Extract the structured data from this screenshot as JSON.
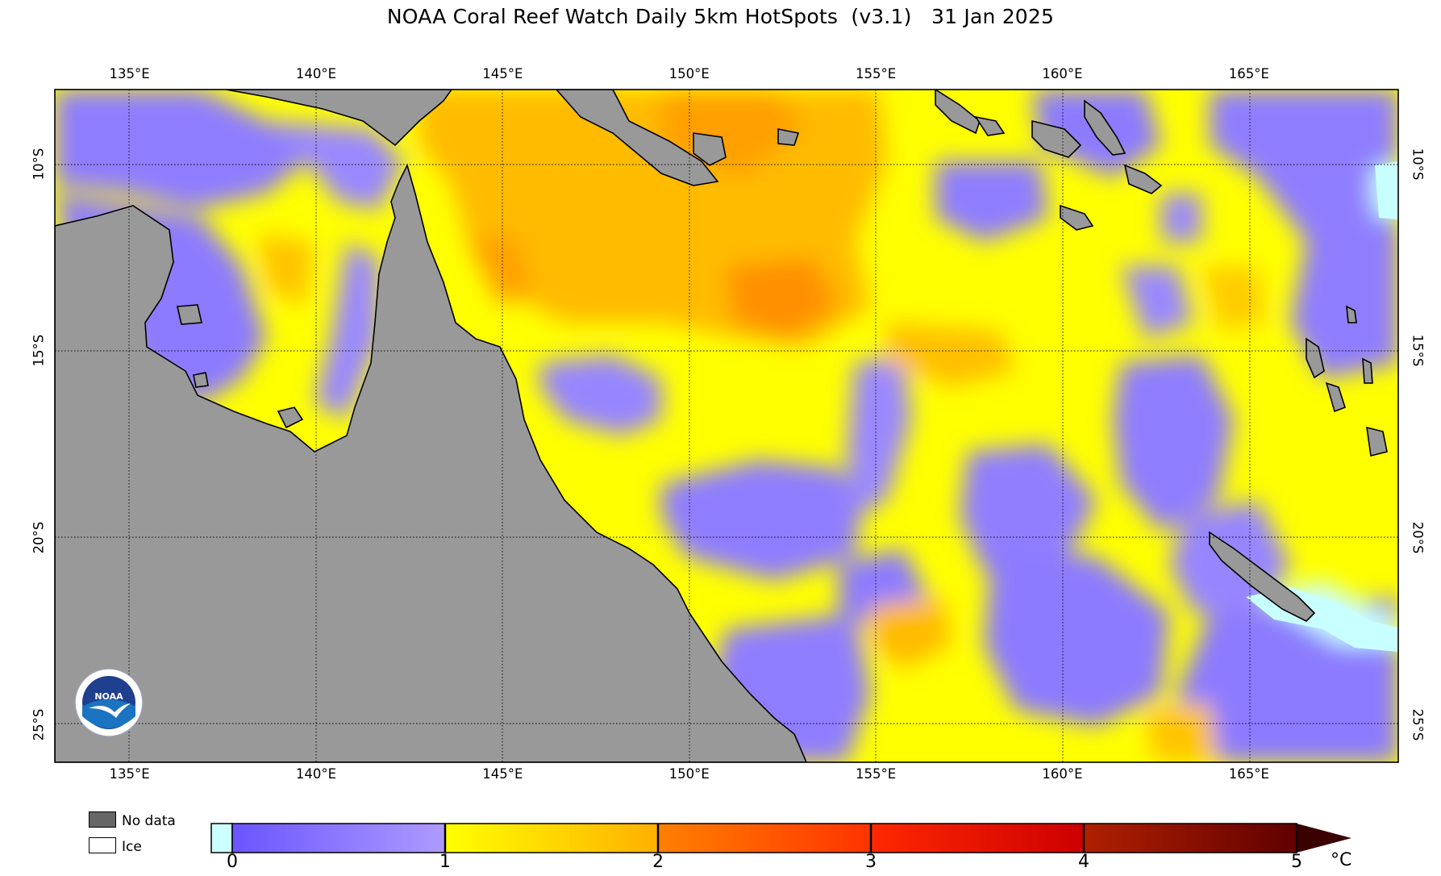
{
  "title": "NOAA Coral Reef Watch Daily 5km HotSpots  (v3.1)   31 Jan 2025",
  "map": {
    "lon_min": 133,
    "lon_max": 169,
    "lat_max": -8,
    "lat_min": -26,
    "lon_ticks": [
      "135°E",
      "140°E",
      "145°E",
      "150°E",
      "155°E",
      "160°E",
      "165°E"
    ],
    "lon_values": [
      135,
      140,
      145,
      150,
      155,
      160,
      165
    ],
    "lat_ticks": [
      "10°S",
      "15°S",
      "20°S",
      "25°S"
    ],
    "lat_values": [
      -10,
      -15,
      -20,
      -25
    ],
    "land_color": "#999999",
    "ocean_base_color": "#ffff00"
  },
  "legend": {
    "no_data_label": "No data",
    "ice_label": "Ice",
    "no_data_color": "#666666",
    "ice_color": "#ffffff"
  },
  "colorbar": {
    "labels": [
      "0",
      "1",
      "2",
      "3",
      "4",
      "5"
    ],
    "values": [
      0,
      1,
      2,
      3,
      4,
      5
    ],
    "unit": "°C",
    "below_zero_color": "#ccffff",
    "stops": [
      "#6a55ff",
      "#ae9bff",
      "#ffff00",
      "#ffb000",
      "#ff8000",
      "#ff3300",
      "#cc0000",
      "#990000",
      "#500000"
    ]
  },
  "logo": {
    "text": "NOAA",
    "icon": "noaa-logo-icon"
  }
}
